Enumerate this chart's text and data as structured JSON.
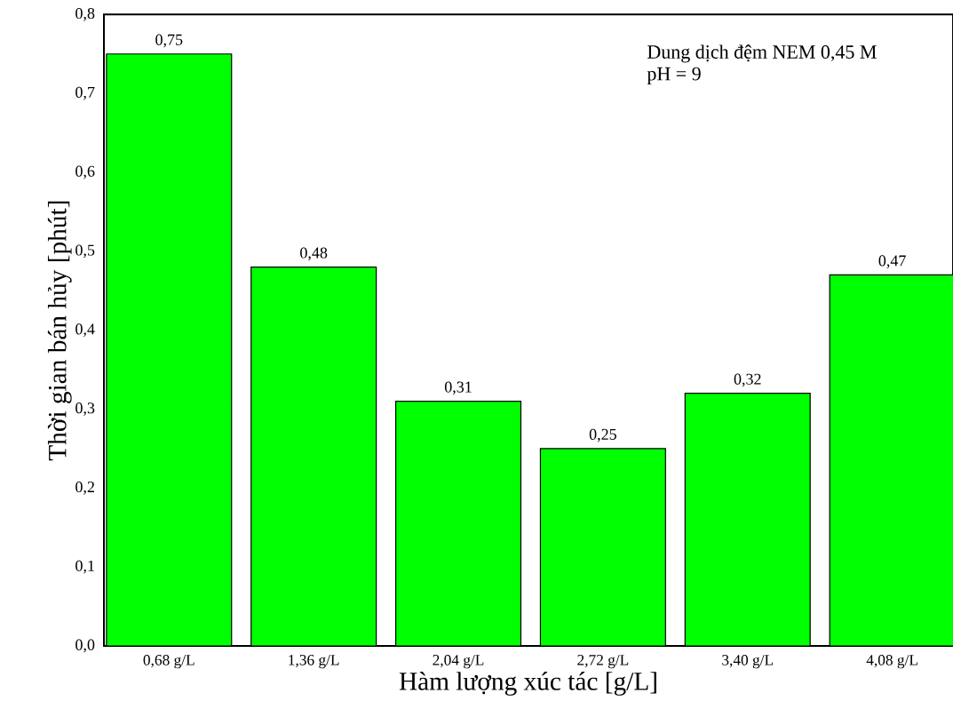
{
  "chart_data": {
    "type": "bar",
    "xlabel": "Hàm lượng xúc tác [g/L]",
    "ylabel": "Thời gian bán hủy [phút]",
    "annotations": [
      "Dung dịch đệm NEM 0,45 M",
      "pH = 9"
    ],
    "categories": [
      "0,68 g/L",
      "1,36 g/L",
      "2,04 g/L",
      "2,72 g/L",
      "3,40 g/L",
      "4,08 g/L"
    ],
    "values": [
      0.75,
      0.48,
      0.31,
      0.25,
      0.32,
      0.47
    ],
    "value_labels": [
      "0,75",
      "0,48",
      "0,31",
      "0,25",
      "0,32",
      "0,47"
    ],
    "color": "#00ff00",
    "ylim": [
      0,
      0.8
    ],
    "yticks": [
      {
        "value": 0,
        "label": "0,0"
      },
      {
        "value": 0.1,
        "label": "0,1"
      },
      {
        "value": 0.2,
        "label": "0,2"
      },
      {
        "value": 0.3,
        "label": "0,3"
      },
      {
        "value": 0.4,
        "label": "0,4"
      },
      {
        "value": 0.5,
        "label": "0,5"
      },
      {
        "value": 0.6,
        "label": "0,6"
      },
      {
        "value": 0.7,
        "label": "0,7"
      },
      {
        "value": 0.8,
        "label": "0,8"
      }
    ],
    "grid": false
  }
}
